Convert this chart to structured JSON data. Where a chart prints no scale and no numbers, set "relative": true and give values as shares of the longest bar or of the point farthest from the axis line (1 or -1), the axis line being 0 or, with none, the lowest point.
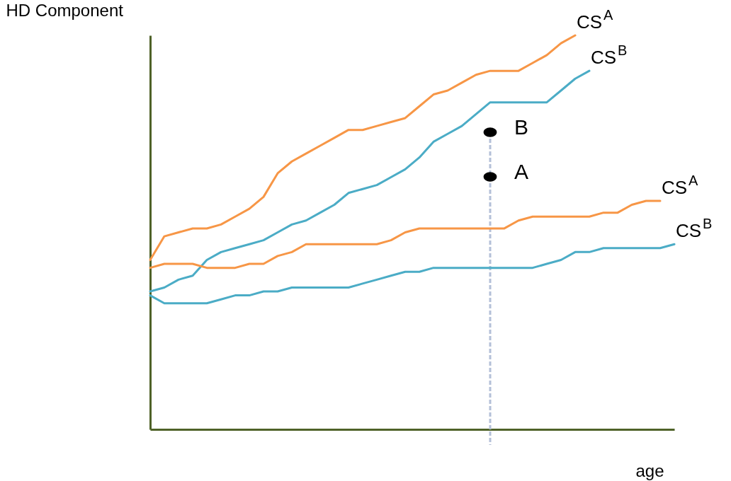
{
  "chart_data": {
    "type": "line",
    "relative": true,
    "xlabel": "age",
    "ylabel": "HD Component",
    "categories": [
      null,
      null,
      null,
      null,
      null,
      null,
      null,
      null,
      null,
      null,
      null,
      null,
      null,
      null,
      null,
      null,
      null,
      null,
      null,
      null,
      null,
      null,
      null,
      null,
      null,
      null,
      null,
      null,
      null,
      null,
      null,
      null,
      null,
      null,
      null,
      null,
      null,
      null
    ],
    "series": [
      {
        "name": "CS$^{A}$",
        "color": "#f79646",
        "values": [
          0.43,
          0.49,
          0.5,
          0.51,
          0.51,
          0.52,
          0.54,
          0.56,
          0.59,
          0.65,
          0.68,
          0.7,
          0.72,
          0.74,
          0.76,
          0.76,
          0.77,
          0.78,
          0.79,
          0.82,
          0.85,
          0.86,
          0.88,
          0.9,
          0.91,
          0.91,
          0.91,
          0.93,
          0.95,
          0.98,
          1.0,
          null,
          null,
          null,
          null,
          null,
          null,
          null
        ]
      },
      {
        "name": "CS$^{B}$",
        "color": "#4bacc6",
        "values": [
          0.35,
          0.36,
          0.38,
          0.39,
          0.43,
          0.45,
          0.46,
          0.47,
          0.48,
          0.5,
          0.52,
          0.53,
          0.55,
          0.57,
          0.6,
          0.61,
          0.62,
          0.64,
          0.66,
          0.69,
          0.73,
          0.75,
          0.77,
          0.8,
          0.83,
          0.83,
          0.83,
          0.83,
          0.83,
          0.86,
          0.89,
          0.91,
          null,
          null,
          null,
          null,
          null,
          null
        ]
      },
      {
        "name": "CS$^{A}$",
        "color": "#f79646",
        "values": [
          0.41,
          0.42,
          0.42,
          0.42,
          0.41,
          0.41,
          0.41,
          0.42,
          0.42,
          0.44,
          0.45,
          0.47,
          0.47,
          0.47,
          0.47,
          0.47,
          0.47,
          0.48,
          0.5,
          0.51,
          0.51,
          0.51,
          0.51,
          0.51,
          0.51,
          0.51,
          0.53,
          0.54,
          0.54,
          0.54,
          0.54,
          0.54,
          0.55,
          0.55,
          0.57,
          0.58,
          0.58,
          null
        ]
      },
      {
        "name": "CS$^{B}$",
        "color": "#4bacc6",
        "values": [
          0.34,
          0.32,
          0.32,
          0.32,
          0.32,
          0.33,
          0.34,
          0.34,
          0.35,
          0.35,
          0.36,
          0.36,
          0.36,
          0.36,
          0.36,
          0.37,
          0.38,
          0.39,
          0.4,
          0.4,
          0.41,
          0.41,
          0.41,
          0.41,
          0.41,
          0.41,
          0.41,
          0.41,
          0.42,
          0.43,
          0.45,
          0.45,
          0.46,
          0.46,
          0.46,
          0.46,
          0.46,
          0.47
        ]
      },
      {
        "name": "B",
        "type": "line",
        "marker": "circle",
        "color": "#000000",
        "values": [
          null,
          null,
          null,
          null,
          null,
          null,
          null,
          null,
          null,
          null,
          null,
          null,
          null,
          null,
          null,
          null,
          null,
          null,
          null,
          null,
          null,
          null,
          null,
          null,
          0.754,
          null,
          null,
          null,
          null,
          null,
          null,
          null,
          null,
          null,
          null,
          null,
          null,
          null
        ]
      },
      {
        "name": "A",
        "type": "line",
        "marker": "circle",
        "color": "#000000",
        "values": [
          null,
          null,
          null,
          null,
          null,
          null,
          null,
          null,
          null,
          null,
          null,
          null,
          null,
          null,
          null,
          null,
          null,
          null,
          null,
          null,
          null,
          null,
          null,
          null,
          0.641,
          null,
          null,
          null,
          null,
          null,
          null,
          null,
          null,
          null,
          null,
          null,
          null,
          null
        ]
      }
    ],
    "legend": false,
    "marker": "none",
    "line_style": "solid",
    "grid": false,
    "tick_labels": false
  }
}
